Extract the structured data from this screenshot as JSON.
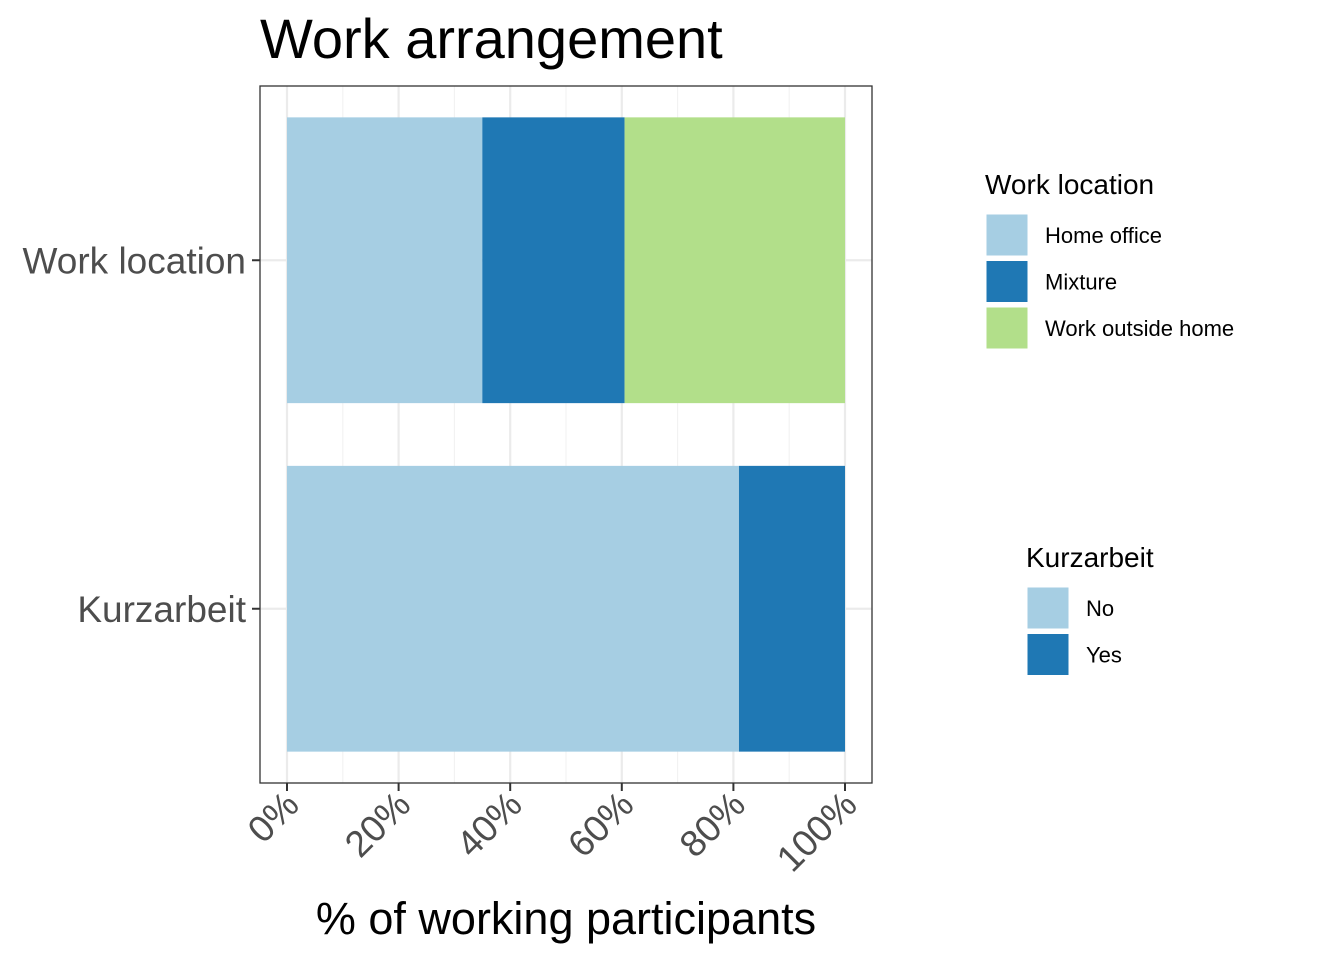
{
  "chart_data": {
    "type": "bar",
    "orientation": "horizontal",
    "stacked": true,
    "title": "Work arrangement",
    "xlabel": "% of working participants",
    "ylabel": "",
    "xlim": [
      0,
      100
    ],
    "x_ticks": [
      0,
      20,
      40,
      60,
      80,
      100
    ],
    "x_tick_labels": [
      "0%",
      "20%",
      "40%",
      "60%",
      "80%",
      "100%"
    ],
    "grid": true,
    "categories": [
      "Work location",
      "Kurzarbeit"
    ],
    "bars": [
      {
        "category": "Work location",
        "segments": [
          {
            "name": "Home office",
            "value": 35,
            "color": "#A6CEE3"
          },
          {
            "name": "Mixture",
            "value": 25.5,
            "color": "#1F78B4"
          },
          {
            "name": "Work outside home",
            "value": 39.5,
            "color": "#B2DF8A"
          }
        ]
      },
      {
        "category": "Kurzarbeit",
        "segments": [
          {
            "name": "No",
            "value": 81,
            "color": "#A6CEE3"
          },
          {
            "name": "Yes",
            "value": 19,
            "color": "#1F78B4"
          }
        ]
      }
    ],
    "legends": [
      {
        "title": "Work location",
        "placement": "right",
        "items": [
          {
            "label": "Home office",
            "color": "#A6CEE3"
          },
          {
            "label": "Mixture",
            "color": "#1F78B4"
          },
          {
            "label": "Work outside home",
            "color": "#B2DF8A"
          }
        ]
      },
      {
        "title": "Kurzarbeit",
        "placement": "right",
        "items": [
          {
            "label": "No",
            "color": "#A6CEE3"
          },
          {
            "label": "Yes",
            "color": "#1F78B4"
          }
        ]
      }
    ]
  }
}
